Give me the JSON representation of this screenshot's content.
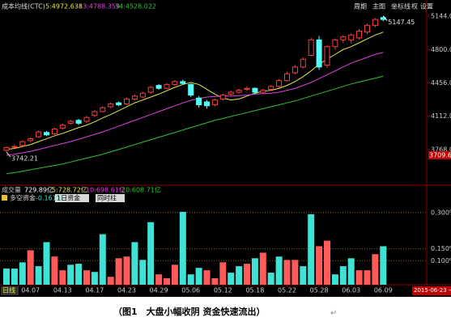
{
  "toolbar": [
    "周期",
    "主图",
    "坐标线",
    "权",
    "设置"
  ],
  "caption": {
    "text": "（图1　大盘小幅收阴  资金快速流出）",
    "mark": "↵"
  },
  "chart_data": [
    {
      "type": "candlestick",
      "title": "成本均线(CTC)",
      "legend": [
        {
          "text": "5:4972.638",
          "color": "#e8e84a"
        },
        {
          "text": "13:4788.359",
          "color": "#e040e0"
        },
        {
          "text": "34:4528.022",
          "color": "#30c030"
        }
      ],
      "ohlc": [
        [
          3760,
          3800,
          3742.21,
          3790
        ],
        [
          3795,
          3820,
          3780,
          3800
        ],
        [
          3810,
          3865,
          3800,
          3850
        ],
        [
          3860,
          3895,
          3845,
          3880
        ],
        [
          3900,
          3965,
          3890,
          3950
        ],
        [
          3945,
          3960,
          3905,
          3920
        ],
        [
          3930,
          3995,
          3920,
          3980
        ],
        [
          3990,
          4035,
          3975,
          4020
        ],
        [
          4040,
          4075,
          4025,
          4060
        ],
        [
          4070,
          4085,
          4020,
          4040
        ],
        [
          4060,
          4115,
          4045,
          4100
        ],
        [
          4120,
          4175,
          4105,
          4160
        ],
        [
          4160,
          4215,
          4150,
          4200
        ],
        [
          4210,
          4255,
          4195,
          4240
        ],
        [
          4250,
          4265,
          4215,
          4230
        ],
        [
          4240,
          4305,
          4230,
          4290
        ],
        [
          4290,
          4335,
          4275,
          4320
        ],
        [
          4310,
          4365,
          4300,
          4350
        ],
        [
          4360,
          4425,
          4345,
          4410
        ],
        [
          4430,
          4445,
          4385,
          4400
        ],
        [
          4400,
          4455,
          4390,
          4440
        ],
        [
          4440,
          4485,
          4425,
          4470
        ],
        [
          4470,
          4490,
          4435,
          4450
        ],
        [
          4440,
          4450,
          4310,
          4330
        ],
        [
          4300,
          4320,
          4200,
          4230
        ],
        [
          4260,
          4280,
          4190,
          4220
        ],
        [
          4230,
          4295,
          4215,
          4280
        ],
        [
          4290,
          4345,
          4275,
          4330
        ],
        [
          4340,
          4375,
          4325,
          4360
        ],
        [
          4360,
          4395,
          4345,
          4380
        ],
        [
          4390,
          4420,
          4375,
          4400
        ],
        [
          4400,
          4410,
          4340,
          4360
        ],
        [
          4360,
          4395,
          4345,
          4380
        ],
        [
          4390,
          4435,
          4375,
          4420
        ],
        [
          4420,
          4495,
          4405,
          4480
        ],
        [
          4480,
          4570,
          4470,
          4550
        ],
        [
          4560,
          4640,
          4545,
          4620
        ],
        [
          4620,
          4720,
          4605,
          4700
        ],
        [
          4740,
          4920,
          4730,
          4900
        ],
        [
          4900,
          4940,
          4590,
          4620
        ],
        [
          4640,
          4845,
          4611,
          4830
        ],
        [
          4830,
          4915,
          4800,
          4900
        ],
        [
          4900,
          4950,
          4870,
          4930
        ],
        [
          4900,
          4970,
          4860,
          4950
        ],
        [
          4920,
          5010,
          4900,
          4990
        ],
        [
          4980,
          5070,
          4960,
          5050
        ],
        [
          5050,
          5125,
          5030,
          5110
        ],
        [
          5130,
          5147.45,
          5090,
          5110
        ]
      ],
      "up_color": "#ff3c3c",
      "down_color": "#54fcfc",
      "series": [
        {
          "color": "#e8e84a",
          "values": [
            3770,
            3780,
            3800,
            3820,
            3850,
            3880,
            3910,
            3935,
            3965,
            3995,
            4020,
            4055,
            4095,
            4130,
            4170,
            4210,
            4250,
            4280,
            4310,
            4340,
            4375,
            4410,
            4440,
            4460,
            4440,
            4390,
            4340,
            4300,
            4280,
            4290,
            4320,
            4350,
            4370,
            4380,
            4400,
            4430,
            4470,
            4520,
            4580,
            4650,
            4700,
            4750,
            4800,
            4830,
            4870,
            4910,
            4950,
            4980
          ]
        },
        {
          "color": "#e040e0",
          "values": [
            3710,
            3720,
            3735,
            3750,
            3770,
            3790,
            3810,
            3830,
            3850,
            3875,
            3900,
            3925,
            3950,
            3980,
            4010,
            4040,
            4070,
            4100,
            4130,
            4160,
            4190,
            4220,
            4250,
            4275,
            4295,
            4310,
            4315,
            4320,
            4320,
            4325,
            4330,
            4340,
            4345,
            4350,
            4360,
            4380,
            4400,
            4430,
            4460,
            4500,
            4540,
            4580,
            4620,
            4660,
            4690,
            4720,
            4750,
            4770
          ]
        },
        {
          "color": "#30c030",
          "values": [
            3520,
            3530,
            3545,
            3560,
            3575,
            3590,
            3605,
            3620,
            3640,
            3660,
            3680,
            3700,
            3720,
            3745,
            3770,
            3795,
            3820,
            3845,
            3870,
            3895,
            3920,
            3945,
            3970,
            3995,
            4020,
            4045,
            4070,
            4090,
            4110,
            4130,
            4150,
            4170,
            4190,
            4210,
            4230,
            4250,
            4270,
            4295,
            4320,
            4345,
            4370,
            4395,
            4420,
            4445,
            4465,
            4485,
            4505,
            4525
          ]
        }
      ],
      "ylim": [
        3409,
        5211
      ],
      "yticks": [
        {
          "value": 5144,
          "label": "5144.0"
        },
        {
          "value": 4800,
          "label": "4800.0"
        },
        {
          "value": 4456,
          "label": "4456.0"
        },
        {
          "value": 4112,
          "label": "4112.0"
        },
        {
          "value": 3768,
          "label": "3768.0"
        }
      ],
      "annotations": [
        {
          "value": 5147.45,
          "label": "5147.45"
        },
        {
          "value": 3742.21,
          "label": "3742.21"
        }
      ],
      "marker": {
        "value": 3709.6,
        "label": "3709.6"
      },
      "grid": false
    },
    {
      "type": "bar",
      "title": "多空资金",
      "title_value": "-0.161%",
      "header": [
        {
          "text": "成交量",
          "color": "#c0c0c0"
        },
        {
          "text": "729.89亿",
          "color": "#ffffff"
        },
        {
          "text": "5:728.72亿",
          "color": "#e8e84a"
        },
        {
          "text": "10:698.61亿",
          "color": "#e040e0"
        },
        {
          "text": "20:608.71亿",
          "color": "#30c030"
        }
      ],
      "controls": [
        "1日资金",
        "同时柱"
      ],
      "categories": [
        null,
        null,
        null,
        "04.07",
        null,
        null,
        null,
        "04.13",
        null,
        null,
        null,
        "04.17",
        null,
        null,
        null,
        "04.23",
        null,
        null,
        null,
        "04.29",
        null,
        null,
        null,
        "05.06",
        null,
        null,
        null,
        "05.12",
        null,
        null,
        null,
        "05.18",
        null,
        null,
        null,
        "05.22",
        null,
        null,
        null,
        "05.28",
        null,
        null,
        null,
        "06.03",
        null,
        null,
        null,
        "06.09"
      ],
      "period_label": "日线",
      "end_date": "2015-06-23 →",
      "values": [
        0.067,
        0.067,
        0.093,
        0.143,
        0.077,
        0.177,
        0.117,
        0.06,
        0.083,
        0.087,
        0.06,
        0.053,
        0.21,
        0.033,
        0.11,
        0.117,
        0.177,
        0.103,
        0.26,
        0.043,
        0.027,
        0.083,
        0.303,
        0.043,
        0.07,
        0.06,
        0.027,
        0.093,
        0.05,
        0.077,
        0.087,
        0.11,
        0.133,
        0.05,
        0.117,
        0.103,
        0.103,
        0.077,
        0.293,
        0.16,
        0.183,
        0.043,
        0.077,
        0.11,
        0.06,
        0.06,
        0.127,
        0.16
      ],
      "colors": [
        "#3fe3d6",
        "#3fe3d6",
        "#3fe3d6",
        "#ff5a5a",
        "#3fe3d6",
        "#3fe3d6",
        "#ff5a5a",
        "#ff5a5a",
        "#3fe3d6",
        "#3fe3d6",
        "#ff5a5a",
        "#3fe3d6",
        "#3fe3d6",
        "#ff5a5a",
        "#ff5a5a",
        "#ff5a5a",
        "#3fe3d6",
        "#3fe3d6",
        "#3fe3d6",
        "#ff5a5a",
        "#ff5a5a",
        "#ff5a5a",
        "#3fe3d6",
        "#3fe3d6",
        "#3fe3d6",
        "#ff5a5a",
        "#ff5a5a",
        "#ff5a5a",
        "#3fe3d6",
        "#3fe3d6",
        "#ff5a5a",
        "#3fe3d6",
        "#ff5a5a",
        "#3fe3d6",
        "#3fe3d6",
        "#ff5a5a",
        "#ff5a5a",
        "#3fe3d6",
        "#3fe3d6",
        "#ff5a5a",
        "#ff5a5a",
        "#3fe3d6",
        "#3fe3d6",
        "#3fe3d6",
        "#ff5a5a",
        "#ff5a5a",
        "#ff5a5a",
        "#3fe3d6"
      ],
      "ylim": [
        0,
        0.343
      ],
      "yticks": [
        {
          "value": 0.3,
          "label": "0.300%"
        },
        {
          "value": 0.15,
          "label": "0.150%"
        },
        {
          "value": 0.1,
          "label": "0.100%"
        }
      ],
      "grid": true
    }
  ]
}
